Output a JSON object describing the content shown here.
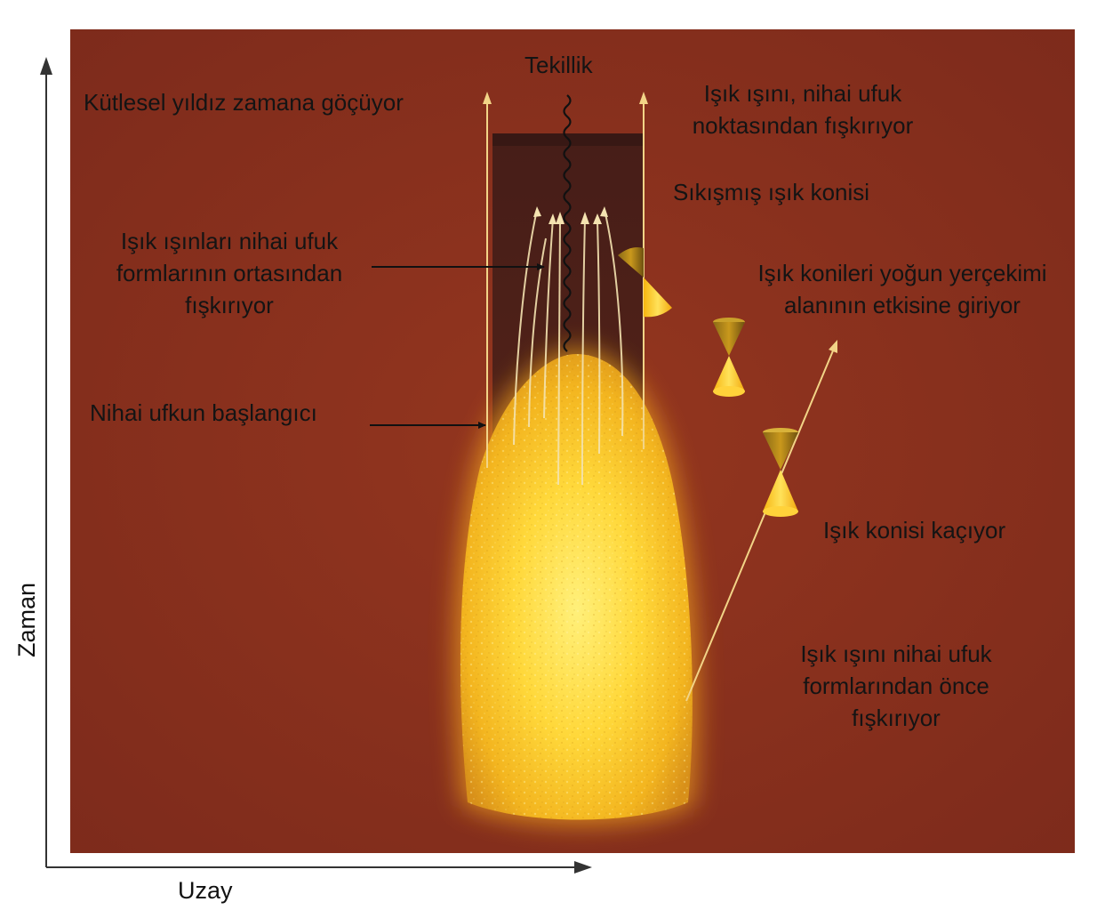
{
  "colors": {
    "background_panel": "#8a311f",
    "horizon_tube": "#3a1a16",
    "star_glow": "#ffd23a",
    "light_ray": "#f2d487",
    "cone": "#f4c21f",
    "text": "#141414"
  },
  "axes": {
    "x_label": "Uzay",
    "y_label": "Zaman"
  },
  "labels": {
    "singularity": "Tekillik",
    "star_collapse": "Kütlesel yıldız zamana göçüyor",
    "ray_from_horizon_point": [
      "Işık ışını, nihai ufuk",
      "noktasından fışkırıyor"
    ],
    "compressed_cone": "Sıkışmış ışık konisi",
    "rays_middle": [
      "Işık ışınları nihai ufuk",
      "formlarının ortasından",
      "fışkırıyor"
    ],
    "cones_entering": [
      "Işık konileri yoğun yerçekimi",
      "alanının etkisine giriyor"
    ],
    "horizon_start": "Nihai ufkun başlangıcı",
    "cone_escapes": "Işık konisi kaçıyor",
    "ray_before_horizon": [
      "Işık ışını nihai ufuk",
      "formlarından önce",
      "fışkırıyor"
    ]
  }
}
